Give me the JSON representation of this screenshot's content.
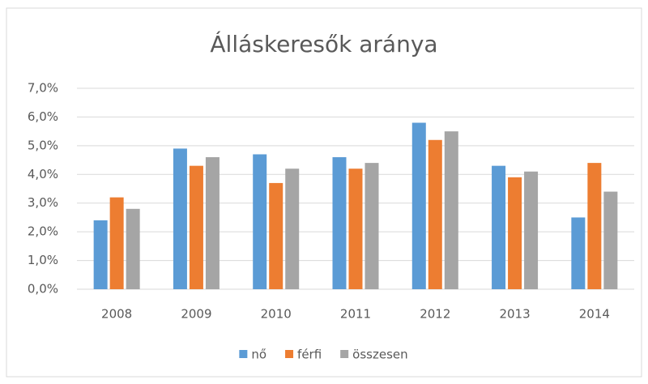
{
  "chart_data": {
    "type": "bar",
    "title": "Álláskeresők aránya",
    "categories": [
      "2008",
      "2009",
      "2010",
      "2011",
      "2012",
      "2013",
      "2014"
    ],
    "series": [
      {
        "name": "nő",
        "color": "#5b9bd5",
        "values": [
          2.4,
          4.9,
          4.7,
          4.6,
          5.8,
          4.3,
          2.5
        ]
      },
      {
        "name": "férfi",
        "color": "#ed7d31",
        "values": [
          3.2,
          4.3,
          3.7,
          4.2,
          5.2,
          3.9,
          4.4
        ]
      },
      {
        "name": "összesen",
        "color": "#a5a5a5",
        "values": [
          2.8,
          4.6,
          4.2,
          4.4,
          5.5,
          4.1,
          3.4
        ]
      }
    ],
    "ylim": [
      0,
      7
    ],
    "yticks": [
      {
        "value": 0,
        "label": "0,0%"
      },
      {
        "value": 1,
        "label": "1,0%"
      },
      {
        "value": 2,
        "label": "2,0%"
      },
      {
        "value": 3,
        "label": "3,0%"
      },
      {
        "value": 4,
        "label": "4,0%"
      },
      {
        "value": 5,
        "label": "5,0%"
      },
      {
        "value": 6,
        "label": "6,0%"
      },
      {
        "value": 7,
        "label": "7,0%"
      }
    ],
    "grid": true,
    "legend": "bottom"
  }
}
